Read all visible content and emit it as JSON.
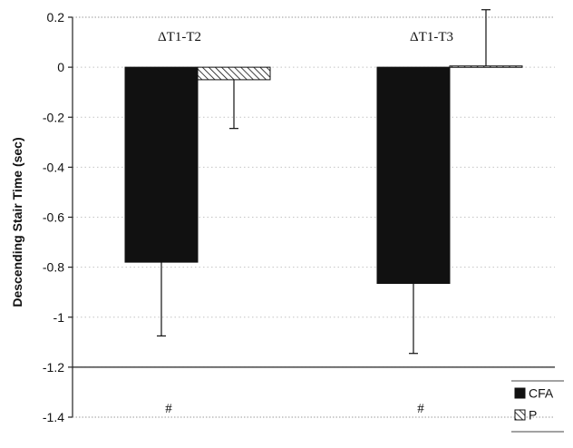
{
  "chart_data": {
    "type": "bar",
    "title": "",
    "xlabel": "",
    "ylabel": "Descending Stair Time (sec)",
    "ylim": [
      -1.4,
      0.2
    ],
    "yticks": [
      0.2,
      0,
      -0.2,
      -0.4,
      -0.6,
      -0.8,
      -1,
      -1.2,
      -1.4
    ],
    "ytick_labels": [
      "0.2",
      "0",
      "-0.2",
      "-0.4",
      "-0.6",
      "-0.8",
      "-1",
      "-1.2",
      "-1.4"
    ],
    "categories": [
      "ΔT1-T2",
      "ΔT1-T3"
    ],
    "series": [
      {
        "name": "CFA",
        "values": [
          -0.78,
          -0.865
        ],
        "error": [
          0.295,
          0.28
        ],
        "color": "#111111",
        "pattern": "solid"
      },
      {
        "name": "P",
        "values": [
          -0.05,
          0.005
        ],
        "error": [
          0.195,
          0.225
        ],
        "color": "#ffffff",
        "pattern": "diagonal-hatch"
      }
    ],
    "reference_line": -1.2,
    "annotations": [
      "#",
      "#"
    ],
    "grid": "horizontal-dotted",
    "legend_position": "bottom-right"
  }
}
